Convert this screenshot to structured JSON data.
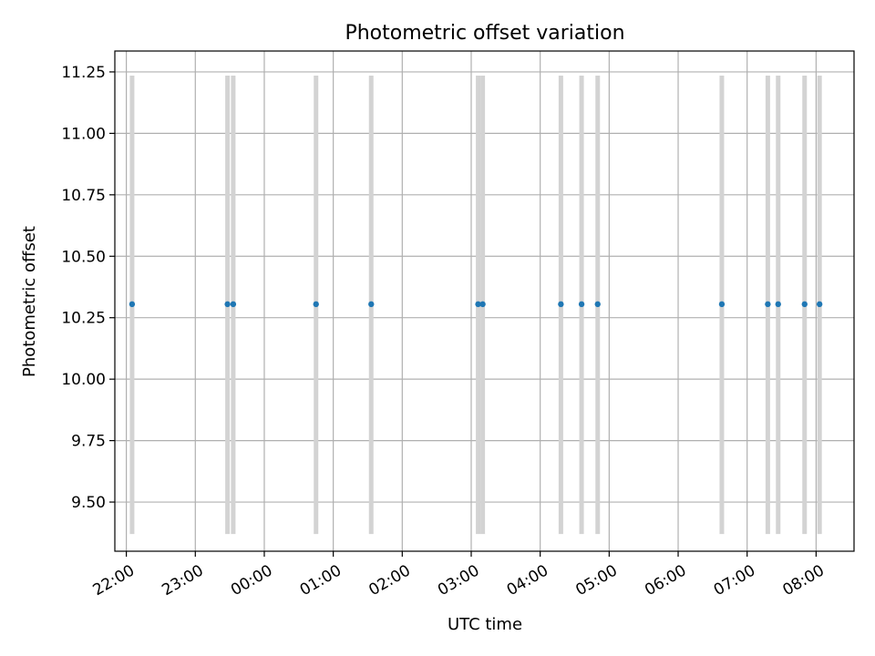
{
  "chart_data": {
    "type": "scatter",
    "title": "Photometric offset variation",
    "xlabel": "UTC time",
    "ylabel": "Photometric offset",
    "x_axis_kind": "time",
    "x_ticks": [
      "22:00",
      "23:00",
      "00:00",
      "01:00",
      "02:00",
      "03:00",
      "04:00",
      "05:00",
      "06:00",
      "07:00",
      "08:00"
    ],
    "y_ticks": [
      "9.50",
      "9.75",
      "10.00",
      "10.25",
      "10.50",
      "10.75",
      "11.00",
      "11.25"
    ],
    "ylim": [
      9.3,
      11.335
    ],
    "xlim": [
      "21:50",
      "08:33"
    ],
    "grid": true,
    "series": [
      {
        "marker": "circle",
        "color": "#1f77b4",
        "x": [
          "22:05",
          "23:28",
          "23:33",
          "00:45",
          "01:33",
          "03:06",
          "03:10",
          "04:18",
          "04:36",
          "04:50",
          "06:38",
          "07:18",
          "07:27",
          "07:50",
          "08:03"
        ],
        "y": [
          10.305,
          10.305,
          10.305,
          10.305,
          10.305,
          10.305,
          10.305,
          10.305,
          10.305,
          10.305,
          10.305,
          10.305,
          10.305,
          10.305,
          10.305
        ]
      }
    ],
    "error_bars": {
      "color": "#d3d3d3",
      "low": 9.37,
      "high": 11.235
    }
  }
}
